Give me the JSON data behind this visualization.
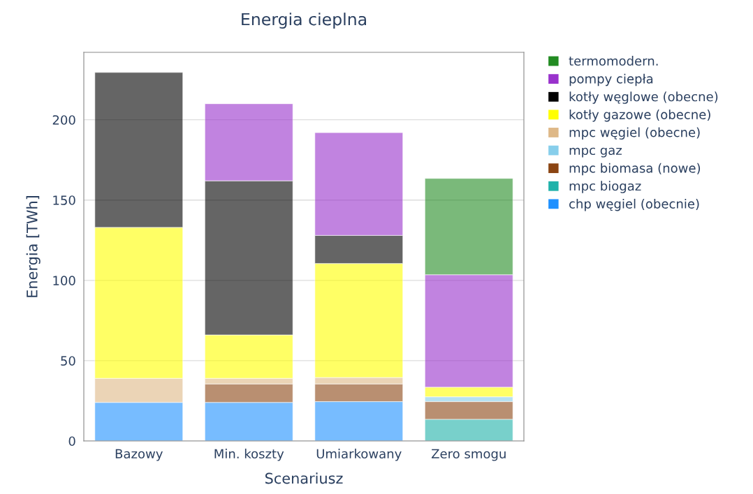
{
  "chart_data": {
    "type": "bar",
    "stacked": true,
    "title": "Energia cieplna",
    "xlabel": "Scenariusz",
    "ylabel": "Energia [TWh]",
    "categories": [
      "Bazowy",
      "Min. koszty",
      "Umiarkowany",
      "Zero smogu"
    ],
    "series": [
      {
        "name": "chp węgiel (obecnie)",
        "color": "#1e90ff",
        "values": [
          24,
          24,
          24.5,
          0
        ]
      },
      {
        "name": "mpc biogaz",
        "color": "#20b2aa",
        "values": [
          0,
          0,
          0,
          13.5
        ]
      },
      {
        "name": "mpc biomasa (nowe)",
        "color": "#8b4513",
        "values": [
          0,
          11.5,
          11,
          11
        ]
      },
      {
        "name": "mpc gaz",
        "color": "#87ceeb",
        "values": [
          0,
          0,
          0,
          3
        ]
      },
      {
        "name": "mpc węgiel (obecne)",
        "color": "#deb887",
        "values": [
          15,
          3.5,
          4,
          0
        ]
      },
      {
        "name": "kotły gazowe (obecne)",
        "color": "#ffff00",
        "values": [
          94,
          27,
          71,
          6
        ]
      },
      {
        "name": "kotły węglowe (obecne)",
        "color": "#000000",
        "values": [
          96.5,
          96,
          17.5,
          0
        ]
      },
      {
        "name": "pompy ciepła",
        "color": "#9932cc",
        "values": [
          0,
          48,
          64,
          70
        ]
      },
      {
        "name": "termomodern.",
        "color": "#228b22",
        "values": [
          0,
          0,
          0,
          60
        ]
      }
    ],
    "ylim": [
      0,
      242
    ],
    "yticks": [
      0,
      50,
      100,
      150,
      200
    ],
    "grid": "y",
    "legend": "top right"
  }
}
